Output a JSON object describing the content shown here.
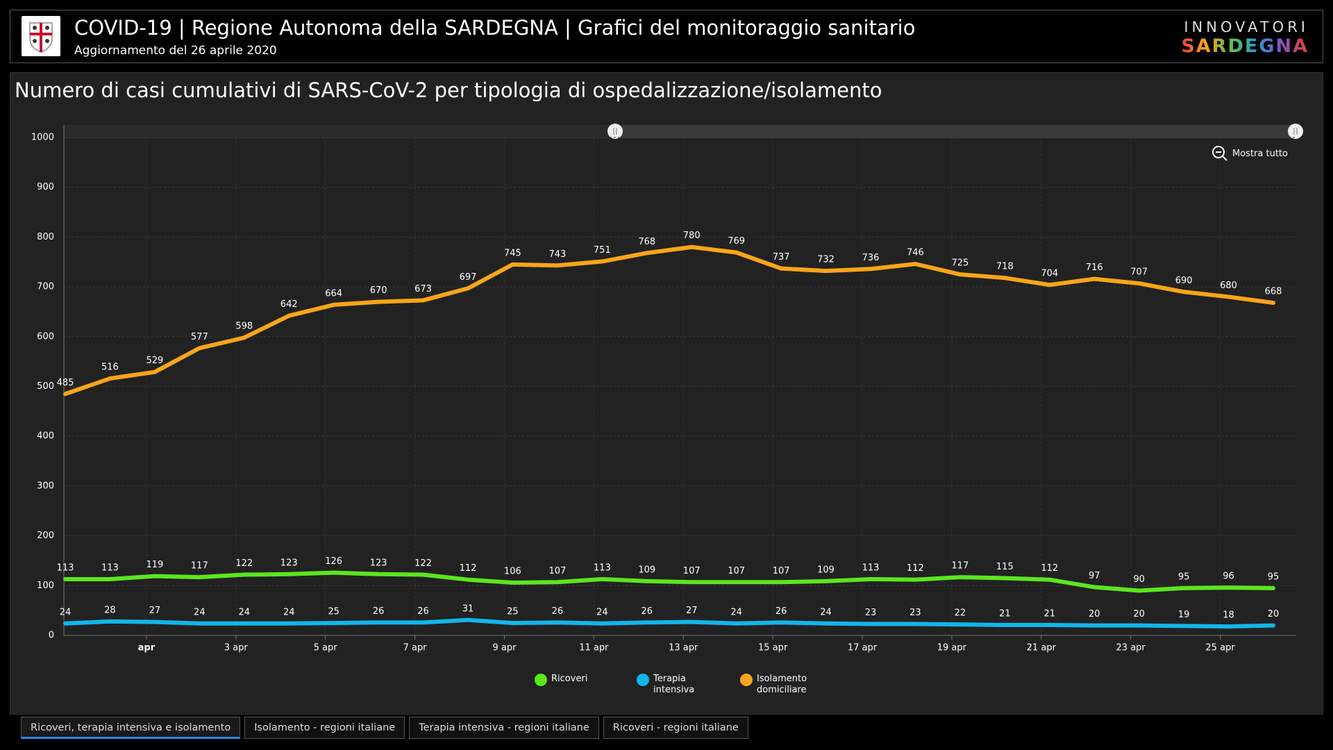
{
  "header": {
    "title": "COVID-19 | Regione Autonoma della SARDEGNA | Grafici del monitoraggio sanitario",
    "subtitle": "Aggiornamento del 26 aprile 2020",
    "logo_top": "INNOVATORI",
    "logo_bottom": "SARDEGNA"
  },
  "zoom_button": "Mostra tutto",
  "tabs": [
    "Ricoveri, terapia intensiva e isolamento",
    "Isolamento - regioni italiane",
    "Terapia intensiva - regioni italiane",
    "Ricoveri - regioni italiane"
  ],
  "chart_data": {
    "type": "line",
    "title": "Numero di casi cumulativi di SARS-CoV-2 per tipologia di ospedalizzazione/isolamento",
    "categories": [
      null,
      null,
      "apr",
      null,
      "3 apr",
      null,
      "5 apr",
      null,
      "7 apr",
      null,
      "9 apr",
      null,
      "11 apr",
      null,
      "13 apr",
      null,
      "15 apr",
      null,
      "17 apr",
      null,
      "19 apr",
      null,
      "21 apr",
      null,
      "23 apr",
      null,
      "25 apr",
      null
    ],
    "series": [
      {
        "name": "Ricoveri",
        "color": "#5ce61e",
        "values": [
          113,
          113,
          119,
          117,
          122,
          123,
          126,
          123,
          122,
          112,
          106,
          107,
          113,
          109,
          107,
          107,
          107,
          109,
          113,
          112,
          117,
          115,
          112,
          97,
          90,
          95,
          96,
          95
        ]
      },
      {
        "name": "Terapia intensiva",
        "color": "#12b6ea",
        "values": [
          24,
          28,
          27,
          24,
          24,
          24,
          25,
          26,
          26,
          31,
          25,
          26,
          24,
          26,
          27,
          24,
          26,
          24,
          23,
          23,
          22,
          21,
          21,
          20,
          20,
          19,
          18,
          20
        ]
      },
      {
        "name": "Isolamento domiciliare",
        "color": "#f9a51a",
        "values": [
          485,
          516,
          529,
          577,
          598,
          642,
          664,
          670,
          673,
          697,
          745,
          743,
          751,
          768,
          780,
          769,
          737,
          732,
          736,
          746,
          725,
          718,
          704,
          716,
          707,
          690,
          680,
          668
        ]
      }
    ],
    "ylim": [
      0,
      1000
    ],
    "yticks": [
      0,
      100,
      200,
      300,
      400,
      500,
      600,
      700,
      800,
      900,
      1000
    ],
    "grid": true
  }
}
